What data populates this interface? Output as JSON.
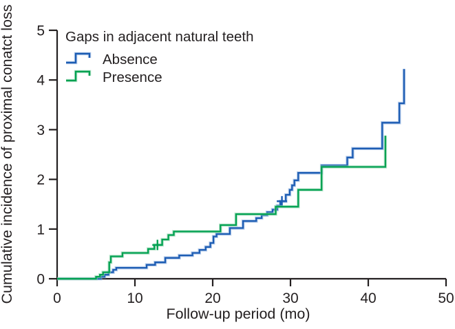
{
  "chart_data": {
    "type": "line",
    "subtype": "step-cumulative-incidence",
    "title": "",
    "xlabel": "Follow-up period (mo)",
    "ylabel": "Cumulative incidence of proximal conatct loss",
    "xlim": [
      0,
      50
    ],
    "ylim": [
      0,
      5
    ],
    "xticks": [
      0,
      10,
      20,
      30,
      40,
      50
    ],
    "yticks": [
      0,
      1,
      2,
      3,
      4,
      5
    ],
    "grid": "off",
    "axis_color": "#231f20",
    "legend": {
      "title": "Gaps in adjacent natural teeth",
      "position": "top-left"
    },
    "series": [
      {
        "name": "Absence",
        "color": "#1c5cb3",
        "halo_color": "#8aaede",
        "points": [
          [
            0,
            0
          ],
          [
            5.6,
            0.04
          ],
          [
            6.1,
            0.08
          ],
          [
            6.6,
            0.13
          ],
          [
            7.2,
            0.18
          ],
          [
            7.6,
            0.22
          ],
          [
            11.5,
            0.28
          ],
          [
            12.6,
            0.33
          ],
          [
            13.9,
            0.42
          ],
          [
            15.7,
            0.47
          ],
          [
            17.4,
            0.52
          ],
          [
            18.3,
            0.58
          ],
          [
            19.1,
            0.64
          ],
          [
            19.7,
            0.72
          ],
          [
            20.1,
            0.85
          ],
          [
            20.5,
            0.9
          ],
          [
            22.2,
            1.02
          ],
          [
            23.9,
            1.16
          ],
          [
            25.6,
            1.22
          ],
          [
            26.3,
            1.28
          ],
          [
            27.0,
            1.34
          ],
          [
            27.7,
            1.39
          ],
          [
            28.3,
            1.47
          ],
          [
            28.7,
            1.56
          ],
          [
            29.4,
            1.69
          ],
          [
            29.9,
            1.79
          ],
          [
            30.2,
            1.88
          ],
          [
            30.5,
            1.98
          ],
          [
            31.0,
            2.13
          ],
          [
            34.0,
            2.28
          ],
          [
            37.3,
            2.44
          ],
          [
            38.0,
            2.62
          ],
          [
            41.8,
            3.14
          ],
          [
            44.0,
            3.53
          ],
          [
            44.6,
            4.22
          ]
        ],
        "censor_marks": [
          [
            28.9,
            1.56
          ]
        ]
      },
      {
        "name": "Presence",
        "color": "#00a151",
        "halo_color": "#8fd3ac",
        "points": [
          [
            0,
            0
          ],
          [
            5.0,
            0.04
          ],
          [
            5.5,
            0.08
          ],
          [
            5.9,
            0.13
          ],
          [
            6.7,
            0.33
          ],
          [
            6.9,
            0.45
          ],
          [
            8.4,
            0.52
          ],
          [
            11.7,
            0.6
          ],
          [
            12.5,
            0.68
          ],
          [
            13.5,
            0.79
          ],
          [
            14.3,
            0.88
          ],
          [
            15.0,
            0.95
          ],
          [
            21.0,
            1.08
          ],
          [
            23.0,
            1.3
          ],
          [
            28.1,
            1.45
          ],
          [
            31.0,
            1.79
          ],
          [
            34.0,
            2.25
          ],
          [
            42.2,
            2.88
          ]
        ],
        "censor_marks": [
          [
            12.9,
            0.68
          ]
        ]
      }
    ]
  }
}
